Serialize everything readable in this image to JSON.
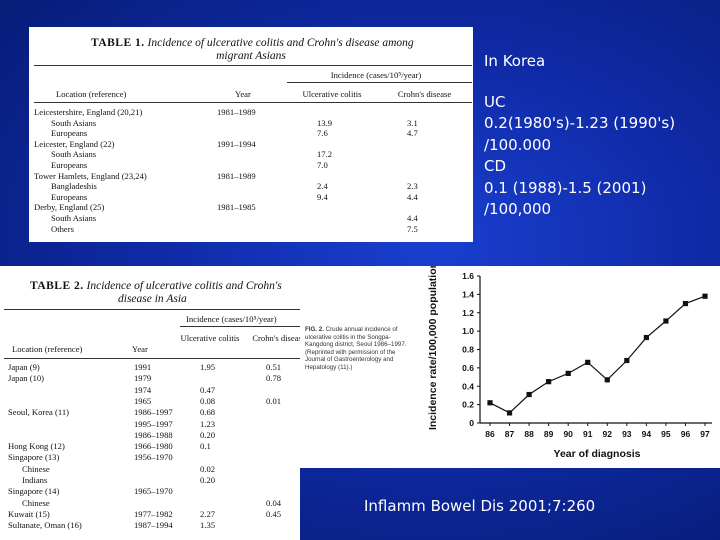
{
  "table1": {
    "label": "TABLE 1.",
    "title_line1": "Incidence of ulcerative colitis and Crohn's disease among",
    "title_line2": "migrant Asians",
    "group_header": "Incidence (cases/10⁵/year)",
    "columns": [
      "Location (reference)",
      "Year",
      "Ulcerative colitis",
      "Crohn's disease"
    ],
    "rows": [
      {
        "loc": "Leicestershire, England (20,21)",
        "indent": false,
        "year": "1981–1989",
        "uc": "",
        "cd": ""
      },
      {
        "loc": "South Asians",
        "indent": true,
        "year": "",
        "uc": "13.9",
        "cd": "3.1"
      },
      {
        "loc": "Europeans",
        "indent": true,
        "year": "",
        "uc": "7.6",
        "cd": "4.7"
      },
      {
        "loc": "Leicester, England (22)",
        "indent": false,
        "year": "1991–1994",
        "uc": "",
        "cd": ""
      },
      {
        "loc": "South Asians",
        "indent": true,
        "year": "",
        "uc": "17.2",
        "cd": ""
      },
      {
        "loc": "Europeans",
        "indent": true,
        "year": "",
        "uc": "7.0",
        "cd": ""
      },
      {
        "loc": "Tower Hamlets, England (23,24)",
        "indent": false,
        "year": "1981–1989",
        "uc": "",
        "cd": ""
      },
      {
        "loc": "Bangladeshis",
        "indent": true,
        "year": "",
        "uc": "2.4",
        "cd": "2.3"
      },
      {
        "loc": "Europeans",
        "indent": true,
        "year": "",
        "uc": "9.4",
        "cd": "4.4"
      },
      {
        "loc": "Derby, England (25)",
        "indent": false,
        "year": "1981–1985",
        "uc": "",
        "cd": ""
      },
      {
        "loc": "South Asians",
        "indent": true,
        "year": "",
        "uc": "",
        "cd": "4.4"
      },
      {
        "loc": "Others",
        "indent": true,
        "year": "",
        "uc": "",
        "cd": "7.5"
      }
    ]
  },
  "table2": {
    "label": "TABLE 2.",
    "title_line1": "Incidence of ulcerative colitis and Crohn's",
    "title_line2": "disease in Asia",
    "group_header": "Incidence (cases/10⁵/year)",
    "columns": [
      "Location (reference)",
      "Year",
      "Ulcerative colitis",
      "Crohn's disease"
    ],
    "rows": [
      {
        "loc": "Japan (9)",
        "indent": false,
        "year": "1991",
        "uc": "1.95",
        "cd": "0.51"
      },
      {
        "loc": "Japan (10)",
        "indent": false,
        "year": "1979",
        "uc": "",
        "cd": "0.78"
      },
      {
        "loc": "",
        "indent": false,
        "year": "1974",
        "uc": "0.47",
        "cd": ""
      },
      {
        "loc": "",
        "indent": false,
        "year": "1965",
        "uc": "0.08",
        "cd": "0.01"
      },
      {
        "loc": "Seoul, Korea (11)",
        "indent": false,
        "year": "1986–1997",
        "uc": "0.68",
        "cd": ""
      },
      {
        "loc": "",
        "indent": false,
        "year": "1995–1997",
        "uc": "1.23",
        "cd": ""
      },
      {
        "loc": "",
        "indent": false,
        "year": "1986–1988",
        "uc": "0.20",
        "cd": ""
      },
      {
        "loc": "Hong Kong (12)",
        "indent": false,
        "year": "1966–1980",
        "uc": "0.1",
        "cd": ""
      },
      {
        "loc": "Singapore (13)",
        "indent": false,
        "year": "1956–1970",
        "uc": "",
        "cd": ""
      },
      {
        "loc": "Chinese",
        "indent": true,
        "year": "",
        "uc": "0.02",
        "cd": ""
      },
      {
        "loc": "Indians",
        "indent": true,
        "year": "",
        "uc": "0.20",
        "cd": ""
      },
      {
        "loc": "Singapore (14)",
        "indent": false,
        "year": "1965–1970",
        "uc": "",
        "cd": ""
      },
      {
        "loc": "Chinese",
        "indent": true,
        "year": "",
        "uc": "",
        "cd": "0.04"
      },
      {
        "loc": "Kuwait (15)",
        "indent": false,
        "year": "1977–1982",
        "uc": "2.27",
        "cd": "0.45"
      },
      {
        "loc": "Sultanate, Oman (16)",
        "indent": false,
        "year": "1987–1994",
        "uc": "1.35",
        "cd": ""
      }
    ]
  },
  "figure": {
    "caption_label": "FIG. 2.",
    "caption_text": "Crude annual incidence of ulcerative colitis in the Songpa-Kangdong district, Seoul 1986–1997. (Reprinted with permission of the Journal of Gastroenterology and Hepatology (11).)"
  },
  "chart_data": {
    "type": "line",
    "x": [
      "86",
      "87",
      "88",
      "89",
      "90",
      "91",
      "92",
      "93",
      "94",
      "95",
      "96",
      "97"
    ],
    "values": [
      0.22,
      0.11,
      0.31,
      0.45,
      0.54,
      0.66,
      0.47,
      0.68,
      0.93,
      1.11,
      1.3,
      1.38
    ],
    "xlabel": "Year of diagnosis",
    "ylabel": "Incidence rate/100,000 population",
    "ylim": [
      0,
      1.6
    ],
    "yticks": [
      "0",
      "0.2",
      "0.4",
      "0.6",
      "0.8",
      "1.0",
      "1.2",
      "1.4",
      "1.6"
    ],
    "grid": false
  },
  "side_text": {
    "title": "In Korea",
    "lines": [
      "UC",
      "0.2(1980's)-1.23 (1990's)",
      "/100.000",
      "CD",
      "0.1 (1988)-1.5 (2001)",
      "/100,000"
    ]
  },
  "citation": "Inflamm Bowel Dis 2001;7:260"
}
